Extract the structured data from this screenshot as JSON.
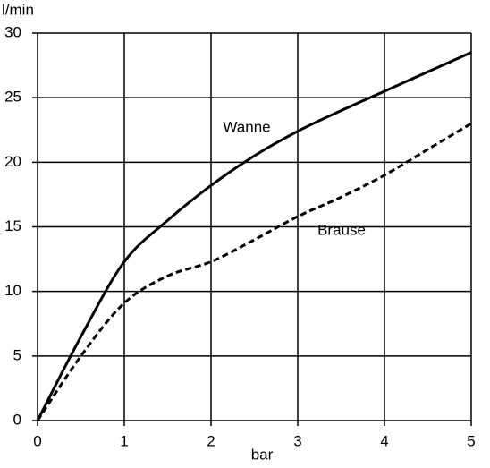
{
  "chart_data": {
    "type": "line",
    "x_label": "bar",
    "y_label": "l/min",
    "x": [
      0,
      0.5,
      1,
      1.5,
      2,
      2.5,
      3,
      3.5,
      4,
      4.5,
      5
    ],
    "series": [
      {
        "name": "Wanne",
        "color": "#000000",
        "dashed": false,
        "values": [
          0,
          6.5,
          12.3,
          15.5,
          18.2,
          20.5,
          22.4,
          24,
          25.5,
          27,
          28.5
        ]
      },
      {
        "name": "Brause",
        "color": "#000000",
        "dashed": true,
        "values": [
          0,
          5,
          9.1,
          11.2,
          12.3,
          14,
          15.8,
          17.3,
          19,
          21,
          23
        ]
      }
    ],
    "xlim": [
      0,
      5
    ],
    "xticks": [
      0,
      1,
      2,
      3,
      4,
      5
    ],
    "ylim": [
      0,
      30
    ],
    "yticks": [
      0,
      5,
      10,
      15,
      20,
      25,
      30
    ],
    "grid": true
  }
}
